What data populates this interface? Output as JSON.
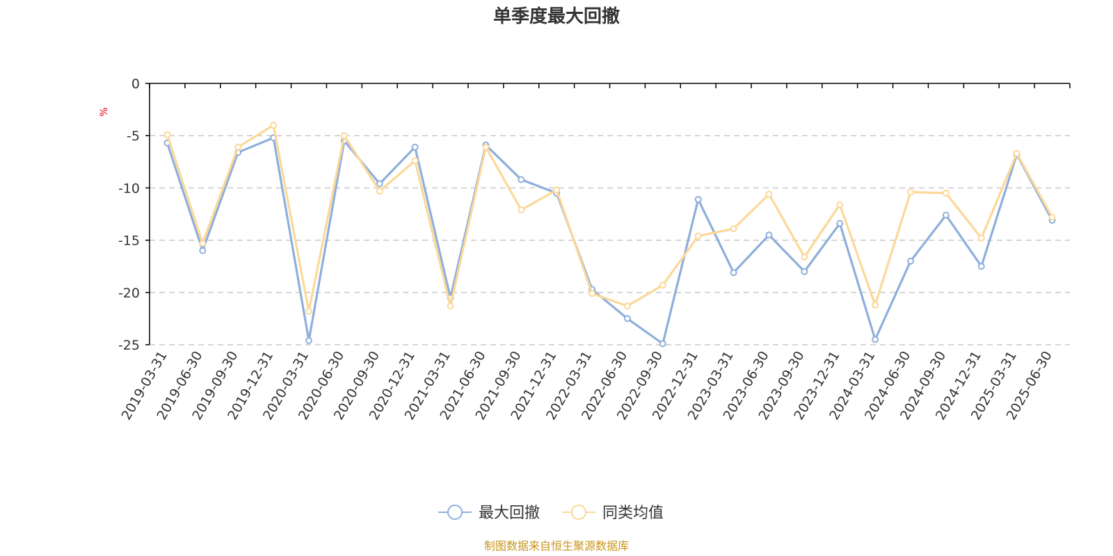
{
  "chart_data": {
    "type": "line",
    "title": "单季度最大回撤",
    "ylabel": "%",
    "xlabel": "",
    "ylim": [
      -25,
      0
    ],
    "yticks": [
      0,
      -5,
      -10,
      -15,
      -20,
      -25
    ],
    "grid": true,
    "legend_position": "bottom-center",
    "categories": [
      "2019-03-31",
      "2019-06-30",
      "2019-09-30",
      "2019-12-31",
      "2020-03-31",
      "2020-06-30",
      "2020-09-30",
      "2020-12-31",
      "2021-03-31",
      "2021-06-30",
      "2021-09-30",
      "2021-12-31",
      "2022-03-31",
      "2022-06-30",
      "2022-09-30",
      "2022-12-31",
      "2023-03-31",
      "2023-06-30",
      "2023-09-30",
      "2023-12-31",
      "2024-03-31",
      "2024-06-30",
      "2024-09-30",
      "2024-12-31",
      "2025-03-31",
      "2025-06-30"
    ],
    "series": [
      {
        "name": "最大回撤",
        "color": "#8eaedc",
        "values": [
          -5.7,
          -16.0,
          -6.6,
          -5.2,
          -24.6,
          -5.5,
          -9.6,
          -6.1,
          -20.5,
          -5.9,
          -9.2,
          -10.5,
          -19.7,
          -22.5,
          -24.9,
          -11.1,
          -18.1,
          -14.5,
          -18.0,
          -13.4,
          -24.5,
          -17.0,
          -12.6,
          -17.5,
          -6.8,
          -13.1
        ]
      },
      {
        "name": "同类均值",
        "color": "#fcd898",
        "values": [
          -4.9,
          -15.3,
          -6.1,
          -4.0,
          -21.8,
          -5.0,
          -10.3,
          -7.4,
          -21.3,
          -6.1,
          -12.1,
          -10.2,
          -20.1,
          -21.3,
          -19.3,
          -14.6,
          -13.9,
          -10.6,
          -16.6,
          -11.6,
          -21.2,
          -10.4,
          -10.5,
          -14.8,
          -6.7,
          -12.8
        ]
      }
    ]
  },
  "footer": {
    "source": "制图数据来自恒生聚源数据库"
  }
}
